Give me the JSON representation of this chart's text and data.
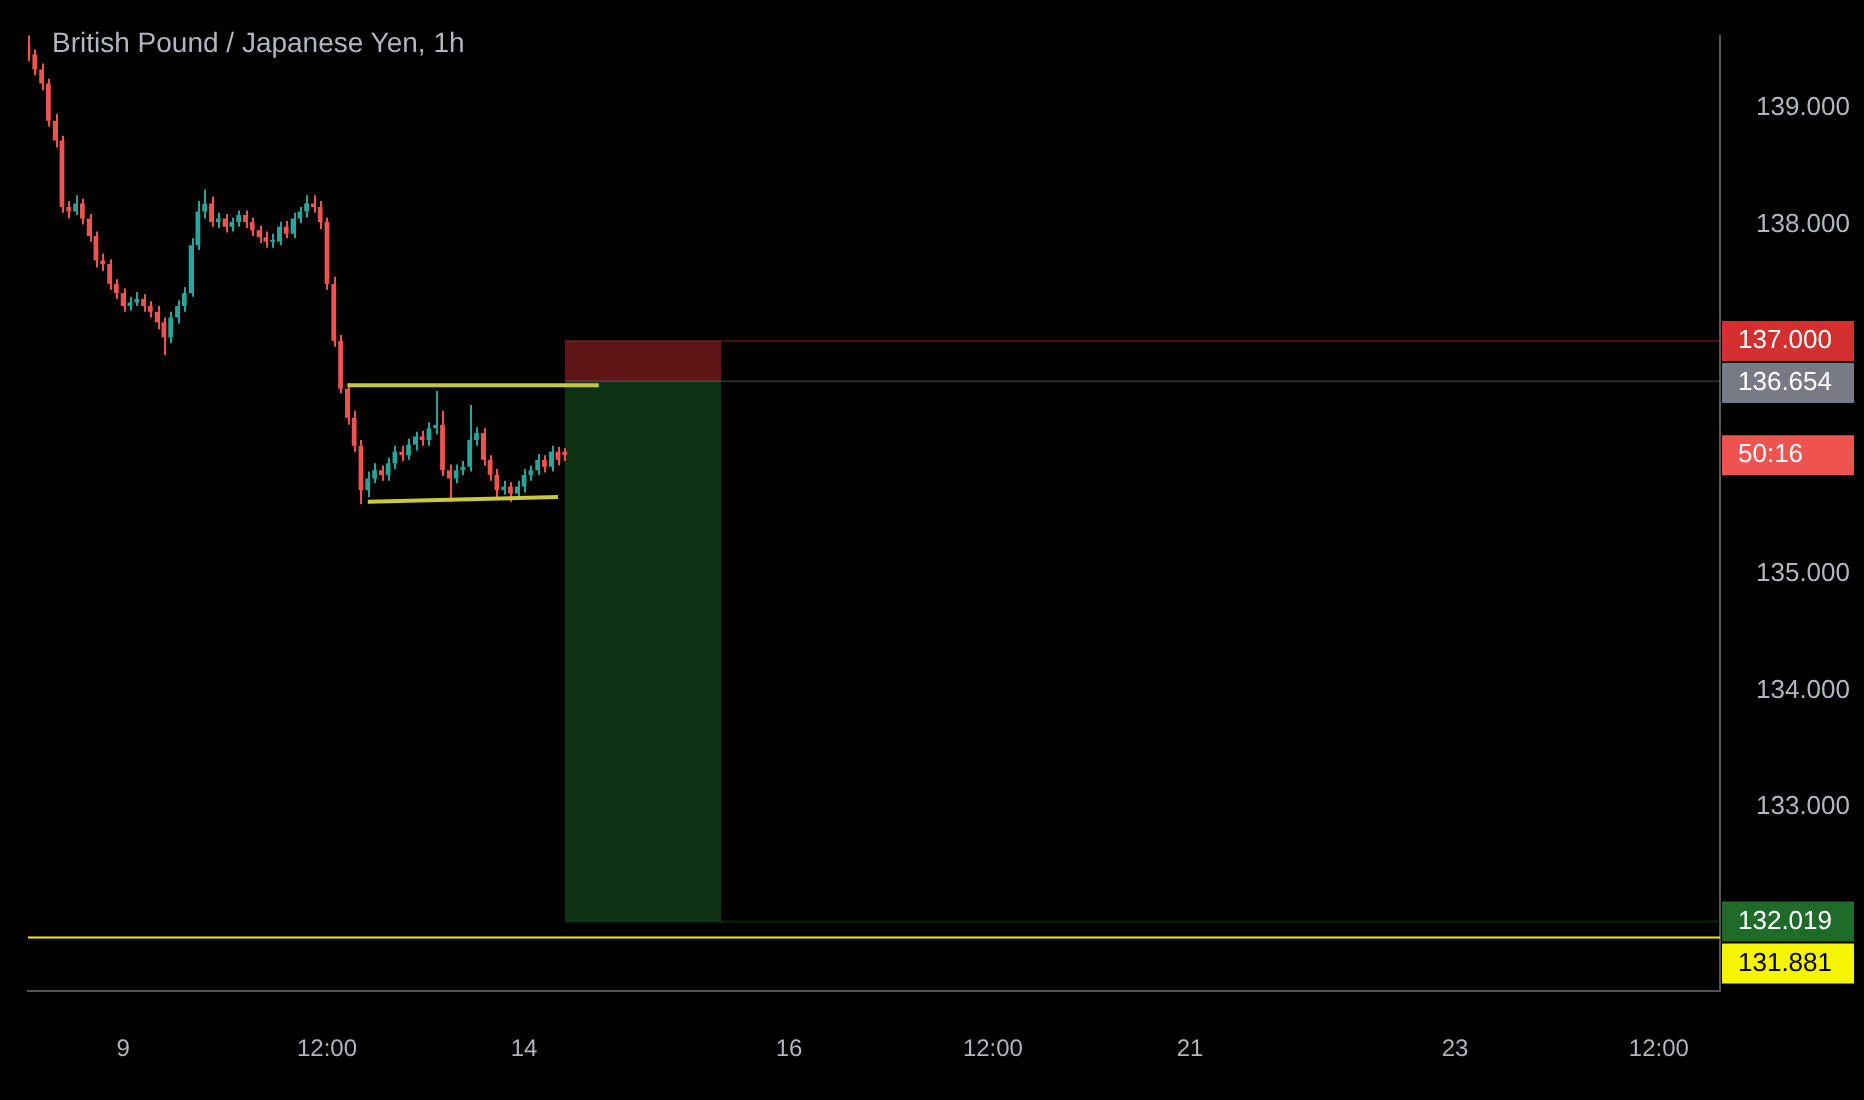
{
  "chart_data": {
    "type": "candlestick",
    "title": "British Pound / Japanese Yen, 1h",
    "categories": [
      null,
      null,
      null,
      null,
      null,
      null,
      null,
      null,
      null,
      null,
      null,
      null,
      null,
      null,
      "9",
      null,
      null,
      null,
      null,
      null,
      null,
      null,
      null,
      null,
      null,
      null,
      null,
      null,
      null,
      null,
      null,
      null,
      null,
      null,
      null,
      null,
      null,
      null,
      null,
      null,
      null,
      null,
      null,
      null,
      "12:00",
      null,
      null,
      null,
      null,
      null,
      null,
      null,
      null,
      null,
      null,
      null,
      null,
      null,
      null,
      null,
      null,
      null,
      null,
      null,
      null,
      null,
      null,
      null,
      null,
      null,
      null,
      null,
      null,
      "14",
      null,
      null,
      null,
      null,
      null,
      null,
      null,
      null,
      null,
      null,
      null,
      null,
      null,
      null,
      null,
      null,
      null,
      null,
      null,
      null,
      null,
      null,
      null,
      null,
      null,
      null,
      null,
      null,
      null,
      null,
      null,
      null,
      null,
      null,
      null,
      null,
      null,
      null,
      "16",
      null,
      null,
      null,
      null,
      null,
      null,
      null,
      null,
      null,
      null,
      null,
      null,
      null,
      null,
      null,
      null,
      null,
      null,
      null,
      null,
      null,
      null,
      null,
      null,
      null,
      null,
      null,
      null,
      null,
      "12:00",
      null,
      null,
      null,
      null,
      null,
      null,
      null,
      null,
      null,
      null,
      null,
      null,
      null,
      null,
      null,
      null,
      null,
      null,
      null,
      null,
      null,
      null,
      null,
      null,
      null,
      null,
      null,
      null,
      "21",
      null,
      null,
      null,
      null,
      null,
      null,
      null,
      null,
      null,
      null,
      null,
      null,
      null,
      null,
      null,
      null,
      null,
      null,
      null,
      null,
      null,
      null,
      null,
      null,
      null,
      null,
      null,
      null,
      null,
      null,
      null,
      null,
      null,
      null,
      null,
      null,
      null,
      null,
      "23",
      null,
      null,
      null,
      null,
      null,
      null,
      null,
      null,
      null,
      null,
      null,
      null,
      null,
      null,
      null,
      null,
      null,
      null,
      null,
      null,
      null,
      null,
      null,
      null,
      null,
      null,
      null,
      null,
      null,
      "12:00",
      null,
      null,
      null,
      null,
      null,
      null,
      null,
      null,
      null
    ],
    "ohlc": [
      [
        139.55,
        139.62,
        139.4,
        139.46
      ],
      [
        139.46,
        139.5,
        139.28,
        139.33
      ],
      [
        139.33,
        139.38,
        139.15,
        139.21
      ],
      [
        139.21,
        139.25,
        138.84,
        138.89
      ],
      [
        138.89,
        138.95,
        138.66,
        138.72
      ],
      [
        138.72,
        138.76,
        138.1,
        138.15
      ],
      [
        138.15,
        138.2,
        138.05,
        138.11
      ],
      [
        138.11,
        138.25,
        138.08,
        138.18
      ],
      [
        138.18,
        138.22,
        138.0,
        138.05
      ],
      [
        138.05,
        138.09,
        137.85,
        137.9
      ],
      [
        137.9,
        137.94,
        137.63,
        137.69
      ],
      [
        137.69,
        137.75,
        137.6,
        137.66
      ],
      [
        137.66,
        137.7,
        137.44,
        137.49
      ],
      [
        137.49,
        137.53,
        137.36,
        137.41
      ],
      [
        137.41,
        137.45,
        137.25,
        137.3
      ],
      [
        137.3,
        137.38,
        137.26,
        137.33
      ],
      [
        137.33,
        137.42,
        137.3,
        137.36
      ],
      [
        137.36,
        137.4,
        137.25,
        137.3
      ],
      [
        137.3,
        137.34,
        137.2,
        137.25
      ],
      [
        137.25,
        137.3,
        137.1,
        137.16
      ],
      [
        137.16,
        137.2,
        136.88,
        137.03
      ],
      [
        137.03,
        137.25,
        136.98,
        137.2
      ],
      [
        137.2,
        137.35,
        137.15,
        137.3
      ],
      [
        137.3,
        137.46,
        137.25,
        137.41
      ],
      [
        137.41,
        137.88,
        137.38,
        137.82
      ],
      [
        137.82,
        138.2,
        137.78,
        138.11
      ],
      [
        138.11,
        138.3,
        138.05,
        138.18
      ],
      [
        138.18,
        138.24,
        137.98,
        138.02
      ],
      [
        138.02,
        138.1,
        137.97,
        138.05
      ],
      [
        138.05,
        138.09,
        137.93,
        137.98
      ],
      [
        137.98,
        138.06,
        137.94,
        138.02
      ],
      [
        138.02,
        138.12,
        137.98,
        138.08
      ],
      [
        138.08,
        138.12,
        137.97,
        138.02
      ],
      [
        138.02,
        138.06,
        137.9,
        137.95
      ],
      [
        137.95,
        137.99,
        137.84,
        137.89
      ],
      [
        137.89,
        137.94,
        137.8,
        137.85
      ],
      [
        137.85,
        137.92,
        137.8,
        137.85
      ],
      [
        137.85,
        138.02,
        137.82,
        137.98
      ],
      [
        137.98,
        138.03,
        137.88,
        137.92
      ],
      [
        137.92,
        138.1,
        137.88,
        138.05
      ],
      [
        138.05,
        138.15,
        138.01,
        138.11
      ],
      [
        138.11,
        138.25,
        138.06,
        138.18
      ],
      [
        138.18,
        138.25,
        138.1,
        138.15
      ],
      [
        138.15,
        138.2,
        137.96,
        138.02
      ],
      [
        138.02,
        138.06,
        137.44,
        137.49
      ],
      [
        137.49,
        137.55,
        136.95,
        137.0
      ],
      [
        137.0,
        137.05,
        136.55,
        136.59
      ],
      [
        136.59,
        136.64,
        136.28,
        136.34
      ],
      [
        136.34,
        136.4,
        136.05,
        136.1
      ],
      [
        136.1,
        136.15,
        135.6,
        135.72
      ],
      [
        135.72,
        135.88,
        135.66,
        135.82
      ],
      [
        135.82,
        135.95,
        135.78,
        135.89
      ],
      [
        135.89,
        135.93,
        135.8,
        135.85
      ],
      [
        135.85,
        136.0,
        135.8,
        135.95
      ],
      [
        135.95,
        136.1,
        135.9,
        136.05
      ],
      [
        136.05,
        136.1,
        135.97,
        136.02
      ],
      [
        136.02,
        136.16,
        135.98,
        136.11
      ],
      [
        136.11,
        136.22,
        136.06,
        136.18
      ],
      [
        136.18,
        136.23,
        136.1,
        136.15
      ],
      [
        136.15,
        136.3,
        136.1,
        136.25
      ],
      [
        136.25,
        136.57,
        136.2,
        136.28
      ],
      [
        136.28,
        136.4,
        135.84,
        135.89
      ],
      [
        135.89,
        135.94,
        135.62,
        135.82
      ],
      [
        135.82,
        135.94,
        135.78,
        135.89
      ],
      [
        135.89,
        135.97,
        135.85,
        135.92
      ],
      [
        135.92,
        136.45,
        135.88,
        136.15
      ],
      [
        136.15,
        136.26,
        136.1,
        136.21
      ],
      [
        136.21,
        136.25,
        135.93,
        135.98
      ],
      [
        135.98,
        136.02,
        135.8,
        135.85
      ],
      [
        135.85,
        135.9,
        135.66,
        135.72
      ],
      [
        135.72,
        135.8,
        135.68,
        135.75
      ],
      [
        135.75,
        135.79,
        135.62,
        135.69
      ],
      [
        135.69,
        135.8,
        135.65,
        135.75
      ],
      [
        135.75,
        135.9,
        135.7,
        135.85
      ],
      [
        135.85,
        135.93,
        135.8,
        135.89
      ],
      [
        135.89,
        136.03,
        135.85,
        135.98
      ],
      [
        135.98,
        136.02,
        135.87,
        135.92
      ],
      [
        135.92,
        136.1,
        135.88,
        136.05
      ],
      [
        136.05,
        136.09,
        135.93,
        135.98
      ],
      [
        136.05,
        136.08,
        135.97,
        136.02
      ],
      null,
      null,
      null,
      null,
      null,
      null,
      null,
      null,
      null,
      null,
      null,
      null,
      null,
      null,
      null,
      null,
      null,
      null,
      null,
      null,
      null,
      null,
      null,
      null,
      null,
      null,
      null,
      null,
      null,
      null,
      null,
      null,
      null,
      null,
      null,
      null,
      null,
      null,
      null,
      null,
      null,
      null,
      null,
      null,
      null,
      null,
      null,
      null,
      null,
      null,
      null,
      null,
      null,
      null,
      null,
      null,
      null,
      null,
      null,
      null,
      null,
      null,
      null,
      null,
      null,
      null,
      null,
      null,
      null,
      null,
      null,
      null,
      null,
      null,
      null,
      null,
      null,
      null,
      null,
      null,
      null,
      null,
      null,
      null,
      null,
      null,
      null,
      null,
      null,
      null,
      null,
      null,
      null,
      null,
      null,
      null,
      null,
      null,
      null,
      null,
      null,
      null,
      null,
      null,
      null,
      null,
      null,
      null,
      null,
      null,
      null,
      null,
      null,
      null,
      null,
      null,
      null,
      null,
      null,
      null,
      null,
      null,
      null,
      null,
      null,
      null,
      null,
      null,
      null,
      null,
      null,
      null,
      null,
      null,
      null,
      null,
      null,
      null,
      null,
      null,
      null,
      null,
      null,
      null,
      null,
      null,
      null,
      null,
      null,
      null,
      null,
      null,
      null,
      null,
      null,
      null,
      null,
      null,
      null,
      null,
      null,
      null,
      null,
      null,
      null,
      null,
      null,
      null,
      null,
      null
    ],
    "series": [
      {
        "type": "line",
        "color": "#c8c83c",
        "values": [
          null,
          null,
          null,
          null,
          null,
          null,
          null,
          null,
          null,
          null,
          null,
          null,
          null,
          null,
          null,
          null,
          null,
          null,
          null,
          null,
          null,
          null,
          null,
          null,
          null,
          null,
          null,
          null,
          null,
          null,
          null,
          null,
          null,
          null,
          null,
          null,
          null,
          null,
          null,
          null,
          null,
          null,
          null,
          null,
          null,
          null,
          null,
          136.62,
          null,
          null,
          null,
          null,
          null,
          null,
          null,
          null,
          null,
          null,
          null,
          null,
          null,
          null,
          null,
          null,
          null,
          null,
          null,
          null,
          null,
          null,
          null,
          null,
          null,
          null,
          null,
          null,
          null,
          null,
          null,
          null,
          null,
          null,
          null,
          null,
          136.62,
          null,
          null,
          null,
          null,
          null,
          null,
          null,
          null,
          null,
          null,
          null,
          null,
          null,
          null,
          null,
          null,
          null,
          null,
          null,
          null,
          null,
          null,
          null,
          null,
          null,
          null,
          null,
          null,
          null,
          null,
          null,
          null,
          null,
          null,
          null,
          null,
          null,
          null,
          null,
          null,
          null,
          null,
          null,
          null,
          null,
          null,
          null,
          null,
          null,
          null,
          null,
          null,
          null,
          null,
          null,
          null,
          null,
          null,
          null,
          null,
          null,
          null,
          null,
          null,
          null,
          null,
          null,
          null,
          null,
          null,
          null,
          null,
          null,
          null,
          null,
          null,
          null,
          null,
          null,
          null,
          null,
          null,
          null,
          null,
          null,
          null,
          null,
          null,
          null,
          null,
          null,
          null,
          null,
          null,
          null,
          null,
          null,
          null,
          null,
          null,
          null,
          null,
          null,
          null,
          null,
          null,
          null,
          null,
          null,
          null,
          null,
          null,
          null,
          null,
          null,
          null,
          null,
          null,
          null,
          null,
          null,
          null,
          null,
          null,
          null,
          null,
          null,
          null,
          null,
          null,
          null,
          null,
          null,
          null,
          null,
          null,
          null,
          null,
          null,
          null,
          null,
          null,
          null,
          null,
          null,
          null,
          null,
          null,
          null,
          null,
          null,
          null,
          null,
          null,
          null,
          null,
          null,
          null,
          null,
          null,
          null,
          null,
          null,
          null,
          null
        ]
      },
      {
        "type": "line",
        "color": "#c8c83c",
        "values": [
          null,
          null,
          null,
          null,
          null,
          null,
          null,
          null,
          null,
          null,
          null,
          null,
          null,
          null,
          null,
          null,
          null,
          null,
          null,
          null,
          null,
          null,
          null,
          null,
          null,
          null,
          null,
          null,
          null,
          null,
          null,
          null,
          null,
          null,
          null,
          null,
          null,
          null,
          null,
          null,
          null,
          null,
          null,
          null,
          null,
          null,
          null,
          null,
          null,
          null,
          135.62,
          null,
          null,
          null,
          null,
          null,
          null,
          null,
          null,
          null,
          null,
          null,
          null,
          null,
          null,
          null,
          null,
          null,
          null,
          null,
          null,
          null,
          null,
          null,
          null,
          null,
          null,
          null,
          135.66,
          null,
          null,
          null,
          null,
          null,
          null,
          null,
          null,
          null,
          null,
          null,
          null,
          null,
          null,
          null,
          null,
          null,
          null,
          null,
          null,
          null,
          null,
          null,
          null,
          null,
          null,
          null,
          null,
          null,
          null,
          null,
          null,
          null,
          null,
          null,
          null,
          null,
          null,
          null,
          null,
          null,
          null,
          null,
          null,
          null,
          null,
          null,
          null,
          null,
          null,
          null,
          null,
          null,
          null,
          null,
          null,
          null,
          null,
          null,
          null,
          null,
          null,
          null,
          null,
          null,
          null,
          null,
          null,
          null,
          null,
          null,
          null,
          null,
          null,
          null,
          null,
          null,
          null,
          null,
          null,
          null,
          null,
          null,
          null,
          null,
          null,
          null,
          null,
          null,
          null,
          null,
          null,
          null,
          null,
          null,
          null,
          null,
          null,
          null,
          null,
          null,
          null,
          null,
          null,
          null,
          null,
          null,
          null,
          null,
          null,
          null,
          null,
          null,
          null,
          null,
          null,
          null,
          null,
          null,
          null,
          null,
          null,
          null,
          null,
          null,
          null,
          null,
          null,
          null,
          null,
          null,
          null,
          null,
          null,
          null,
          null,
          null,
          null,
          null,
          null,
          null,
          null,
          null,
          null,
          null,
          null,
          null,
          null,
          null,
          null,
          null,
          null,
          null,
          null,
          null,
          null,
          null,
          null,
          null,
          null,
          null,
          null,
          null,
          null,
          null,
          null,
          null,
          null,
          null,
          null,
          null
        ]
      }
    ],
    "ylim": [
      131.42,
      139.62
    ],
    "yticks": [
      {
        "value": 133,
        "label": "133.000"
      },
      {
        "value": 134,
        "label": "134.000"
      },
      {
        "value": 135,
        "label": "135.000"
      },
      {
        "value": 138,
        "label": "138.000"
      },
      {
        "value": 139,
        "label": "139.000"
      }
    ],
    "ref_lines": [
      {
        "axis": "y",
        "value": 137.0,
        "label": "137.000",
        "color": "#d32f2f"
      },
      {
        "axis": "y",
        "value": 136.654,
        "label": "136.654",
        "color": "#787b86"
      },
      {
        "axis": "y",
        "value": 132.019,
        "label": "132.019",
        "color": "#1e6b2a"
      },
      {
        "axis": "y",
        "value": 131.881,
        "label": "131.881",
        "color": "#f5f500"
      }
    ],
    "bands": [
      {
        "axis": "y",
        "from": 136.654,
        "to": 137.0,
        "color": "#d32f2f"
      },
      {
        "axis": "y",
        "from": 132.019,
        "to": 136.654,
        "color": "#1e6b2a"
      }
    ],
    "annotations": [
      "50:16"
    ]
  }
}
